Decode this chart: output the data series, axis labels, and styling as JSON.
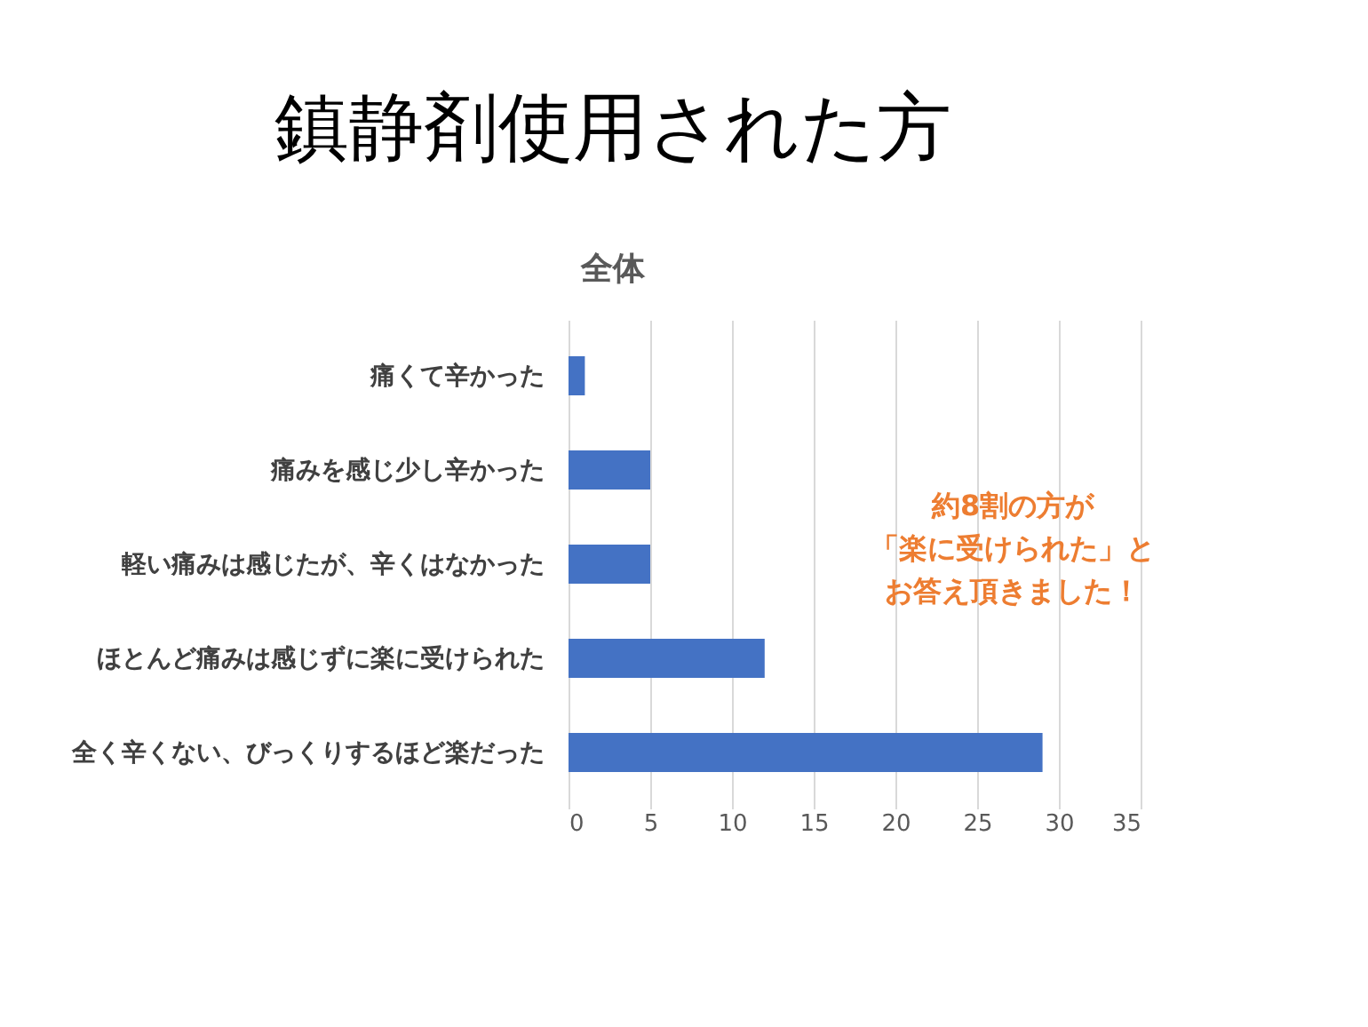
{
  "chart_data": {
    "type": "bar",
    "orientation": "horizontal",
    "title": "鎮静剤使用された方",
    "subtitle": "全体",
    "categories": [
      "痛くて辛かった",
      "痛みを感じ少し辛かった",
      "軽い痛みは感じたが、辛くはなかった",
      "ほとんど痛みは感じずに楽に受けられた",
      "全く辛くない、びっくりするほど楽だった"
    ],
    "values": [
      1,
      5,
      5,
      12,
      29
    ],
    "color": "#4472c4",
    "xlim": [
      0,
      35
    ],
    "xticks": [
      0,
      5,
      10,
      15,
      20,
      25,
      30,
      35
    ],
    "grid": "x",
    "annotations": [
      "約8割の方が",
      "「楽に受けられた」と",
      "お答え頂きました！"
    ]
  }
}
